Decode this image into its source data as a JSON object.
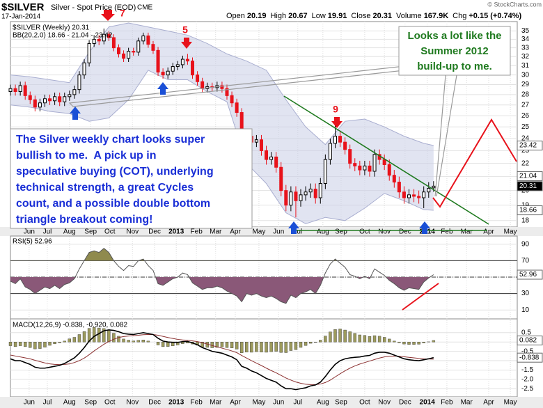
{
  "credit": "© StockCharts.com",
  "chart_data": [
    {
      "type": "candlestick",
      "title": "$SILVER",
      "subtitle": "Silver - Spot Price (EOD)",
      "exchange": "CME",
      "date": "17-Jan-2014",
      "stats": [
        {
          "label": "Open",
          "value": "20.19"
        },
        {
          "label": "High",
          "value": "20.67"
        },
        {
          "label": "Low",
          "value": "19.91"
        },
        {
          "label": "Close",
          "value": "20.31"
        },
        {
          "label": "Volume",
          "value": "167.9K"
        },
        {
          "label": "Chg",
          "value": "+0.15 (+0.74%)"
        }
      ],
      "legend": [
        "$SILVER (Weekly) 20.31",
        "BB(20,2.0) 18.66 - 21.04 - 23.42"
      ],
      "log_scale": true,
      "grid": true,
      "up_color": "#000000",
      "down_color": "#e8121b",
      "xlim": [
        0,
        103
      ],
      "xticks": [
        {
          "value": 3.8,
          "label": "Jun"
        },
        {
          "value": 7.5,
          "label": "Jul"
        },
        {
          "value": 12.0,
          "label": "Aug"
        },
        {
          "value": 16.3,
          "label": "Sep"
        },
        {
          "value": 20.2,
          "label": "Oct"
        },
        {
          "value": 24.8,
          "label": "Nov"
        },
        {
          "value": 29.3,
          "label": "Dec"
        },
        {
          "value": 33.7,
          "label": "2013"
        },
        {
          "value": 37.8,
          "label": "Feb"
        },
        {
          "value": 41.7,
          "label": "Mar"
        },
        {
          "value": 45.7,
          "label": "Apr"
        },
        {
          "value": 50.5,
          "label": "May"
        },
        {
          "value": 54.5,
          "label": "Jun"
        },
        {
          "value": 58.4,
          "label": "Jul"
        },
        {
          "value": 63.5,
          "label": "Aug"
        },
        {
          "value": 67.2,
          "label": "Sep"
        },
        {
          "value": 72.0,
          "label": "Oct"
        },
        {
          "value": 76.0,
          "label": "Nov"
        },
        {
          "value": 80.2,
          "label": "Dec"
        },
        {
          "value": 84.7,
          "label": "2014"
        },
        {
          "value": 88.7,
          "label": "Feb"
        },
        {
          "value": 92.7,
          "label": "Mar"
        },
        {
          "value": 97.2,
          "label": "Apr"
        },
        {
          "value": 101.6,
          "label": "May"
        }
      ],
      "ylim": [
        17.6,
        36
      ],
      "yticks": [
        18,
        19,
        20,
        21,
        22,
        23,
        24,
        25,
        26,
        27,
        28,
        29,
        30,
        31,
        32,
        33,
        34,
        35
      ],
      "x": [
        0,
        1,
        2,
        3,
        4,
        5,
        6,
        7,
        8,
        9,
        10,
        11,
        12,
        13,
        14,
        15,
        16,
        17,
        18,
        19,
        20,
        21,
        22,
        23,
        24,
        25,
        26,
        27,
        28,
        29,
        30,
        31,
        32,
        33,
        34,
        35,
        36,
        37,
        38,
        39,
        40,
        41,
        42,
        43,
        44,
        45,
        46,
        47,
        48,
        49,
        50,
        51,
        52,
        53,
        54,
        55,
        56,
        57,
        58,
        59,
        60,
        61,
        62,
        63,
        64,
        65,
        66,
        67,
        68,
        69,
        70,
        71,
        72,
        73,
        74,
        75,
        76,
        77,
        78,
        79,
        80,
        81,
        82,
        83,
        84,
        85,
        86
      ],
      "open": [
        28.3,
        28.6,
        28.3,
        28.9,
        27.9,
        27.5,
        26.8,
        27.2,
        27.6,
        27.4,
        27.8,
        27.3,
        27.8,
        28.0,
        28.5,
        30.0,
        31.3,
        33.5,
        34.0,
        33.8,
        34.6,
        34.2,
        33.0,
        32.3,
        31.8,
        32.6,
        32.5,
        33.8,
        34.4,
        33.4,
        32.7,
        30.3,
        30.0,
        30.4,
        30.9,
        31.1,
        31.7,
        31.5,
        30.0,
        29.3,
        28.6,
        28.8,
        28.7,
        28.9,
        28.6,
        27.9,
        27.2,
        26.3,
        23.0,
        24.2,
        23.7,
        23.9,
        23.0,
        22.3,
        22.5,
        21.7,
        20.0,
        19.0,
        19.9,
        19.3,
        19.7,
        19.9,
        20.1,
        19.5,
        20.5,
        22.3,
        23.6,
        24.2,
        23.7,
        23.1,
        22.0,
        21.8,
        21.5,
        21.8,
        21.4,
        22.7,
        22.3,
        21.9,
        21.1,
        20.6,
        19.9,
        19.5,
        19.7,
        19.6,
        19.5,
        19.9,
        20.19
      ],
      "high": [
        29.0,
        29.0,
        29.3,
        29.3,
        28.3,
        27.9,
        27.6,
        28.0,
        28.0,
        28.2,
        28.2,
        28.2,
        28.4,
        28.9,
        30.4,
        31.7,
        33.9,
        34.5,
        34.5,
        35.3,
        35.0,
        34.6,
        33.4,
        32.7,
        33.0,
        33.0,
        34.2,
        34.8,
        34.8,
        33.8,
        33.1,
        30.7,
        30.8,
        31.3,
        31.5,
        32.1,
        32.3,
        31.9,
        30.4,
        29.7,
        29.2,
        29.2,
        29.3,
        29.3,
        29.0,
        28.3,
        27.6,
        26.7,
        24.6,
        24.6,
        24.3,
        24.3,
        23.4,
        22.9,
        22.9,
        22.1,
        20.4,
        20.3,
        20.3,
        20.1,
        20.3,
        20.5,
        20.5,
        20.9,
        22.7,
        24.0,
        25.2,
        24.6,
        24.1,
        23.5,
        22.4,
        22.2,
        22.2,
        22.2,
        23.1,
        23.1,
        22.7,
        22.3,
        21.5,
        21.0,
        20.3,
        20.1,
        20.1,
        20.0,
        20.3,
        20.6,
        20.67
      ],
      "low": [
        27.9,
        27.9,
        27.9,
        27.5,
        27.1,
        26.4,
        26.4,
        26.8,
        27.0,
        27.0,
        26.9,
        26.9,
        27.4,
        27.6,
        28.1,
        29.6,
        30.9,
        33.1,
        33.3,
        33.4,
        33.8,
        32.6,
        31.9,
        31.4,
        31.4,
        32.1,
        32.1,
        33.4,
        33.0,
        32.3,
        29.9,
        29.6,
        29.6,
        30.0,
        30.5,
        30.7,
        31.1,
        29.6,
        28.9,
        28.2,
        28.2,
        28.3,
        28.3,
        28.2,
        27.5,
        26.8,
        25.9,
        22.2,
        22.6,
        23.3,
        23.3,
        22.6,
        21.9,
        21.9,
        21.3,
        19.6,
        18.6,
        18.6,
        18.2,
        18.9,
        19.3,
        19.5,
        19.1,
        19.1,
        20.1,
        21.9,
        23.2,
        23.3,
        22.7,
        21.6,
        21.4,
        21.1,
        21.1,
        21.0,
        21.0,
        21.9,
        21.5,
        20.7,
        20.2,
        19.5,
        19.1,
        19.1,
        19.2,
        19.1,
        18.8,
        19.5,
        19.91
      ],
      "close": [
        28.6,
        28.3,
        28.9,
        27.9,
        27.5,
        26.8,
        27.2,
        27.6,
        27.4,
        27.8,
        27.3,
        27.8,
        28.0,
        28.5,
        30.0,
        31.3,
        33.5,
        34.0,
        33.8,
        34.6,
        34.2,
        33.0,
        32.3,
        31.8,
        32.6,
        32.5,
        33.8,
        34.4,
        33.4,
        32.7,
        30.3,
        30.0,
        30.4,
        30.9,
        31.1,
        31.7,
        31.5,
        30.0,
        29.3,
        28.6,
        28.8,
        28.7,
        28.9,
        28.6,
        27.9,
        27.2,
        26.3,
        23.0,
        24.2,
        23.7,
        23.9,
        23.0,
        22.3,
        22.5,
        21.7,
        20.0,
        19.0,
        19.9,
        19.3,
        19.7,
        19.9,
        20.1,
        19.5,
        20.5,
        22.3,
        23.6,
        24.2,
        23.7,
        23.1,
        22.0,
        21.8,
        21.5,
        21.8,
        21.4,
        22.7,
        22.3,
        21.9,
        21.1,
        20.6,
        19.9,
        19.5,
        19.7,
        19.6,
        19.5,
        19.9,
        20.16,
        20.31
      ],
      "bands": {
        "color": "#c9cde6",
        "line_color": "#a9aed0",
        "x": [
          0,
          4,
          8,
          12,
          16,
          20,
          24,
          28,
          32,
          36,
          40,
          44,
          48,
          52,
          56,
          60,
          64,
          68,
          72,
          76,
          80,
          84,
          86
        ],
        "upper": [
          30.0,
          29.8,
          29.5,
          29.2,
          32.5,
          35.5,
          36.0,
          35.5,
          35.0,
          34.5,
          33.5,
          32.3,
          31.5,
          30.5,
          27.5,
          25.0,
          23.5,
          25.5,
          25.7,
          25.0,
          24.2,
          23.6,
          23.42
        ],
        "lower": [
          27.0,
          26.8,
          26.4,
          26.2,
          25.5,
          25.8,
          27.5,
          30.5,
          29.5,
          29.5,
          28.3,
          27.3,
          22.0,
          20.5,
          18.5,
          17.8,
          18.2,
          18.0,
          18.8,
          19.8,
          19.3,
          18.7,
          18.66
        ],
        "middle_last": 21.04
      },
      "flag_close_fill": "#000000",
      "flag_band_fill": "#ffffff",
      "annotations": [
        "7",
        "5",
        "9"
      ],
      "note_lines": [
        "The Silver weekly chart looks super",
        "bullish to me.  A pick up in",
        "speculative buying (COT), underlying",
        "technical strength, a great Cycles",
        "count, and a possible double bottom",
        "triangle breakout coming!"
      ],
      "callout_lines": [
        "Looks a lot like the",
        "Summer 2012",
        "build-up to me."
      ]
    },
    {
      "type": "line",
      "label": "RSI(5) 52.96",
      "color": "#555555",
      "high_fill": "#8f8a4e",
      "low_fill": "#8a5878",
      "ylim": [
        0,
        100
      ],
      "yticks": [
        10,
        30,
        50,
        70,
        90
      ],
      "levels": [
        30,
        70
      ],
      "midline": 50,
      "values": [
        45,
        42,
        48,
        38,
        35,
        30,
        34,
        38,
        36,
        40,
        36,
        41,
        43,
        48,
        60,
        70,
        80,
        82,
        80,
        85,
        80,
        70,
        63,
        58,
        64,
        63,
        70,
        72,
        64,
        58,
        42,
        40,
        44,
        48,
        50,
        55,
        53,
        43,
        39,
        35,
        37,
        37,
        39,
        37,
        33,
        30,
        27,
        20,
        30,
        28,
        30,
        27,
        25,
        27,
        24,
        20,
        18,
        28,
        25,
        30,
        32,
        35,
        30,
        40,
        55,
        66,
        72,
        67,
        62,
        53,
        51,
        48,
        51,
        48,
        60,
        56,
        52,
        46,
        42,
        37,
        34,
        37,
        36,
        35,
        44,
        49,
        52.96
      ]
    },
    {
      "type": "macd",
      "label": "MACD(12,26,9) -0.838, -0.920, 0.082",
      "macd_color": "#000000",
      "signal_color": "#8b3030",
      "hist_color": "#9c9a5c",
      "ylim": [
        -2.9,
        1.2
      ],
      "yticks": [
        0.5,
        0,
        -0.5,
        {
          "value": -1,
          "label": "-1.0"
        },
        -1.5,
        {
          "value": -2,
          "label": "-2.0"
        },
        -2.5
      ],
      "macd": [
        -0.9,
        -1.0,
        -1.0,
        -1.1,
        -1.2,
        -1.35,
        -1.4,
        -1.4,
        -1.35,
        -1.3,
        -1.25,
        -1.15,
        -1.0,
        -0.85,
        -0.6,
        -0.3,
        0.05,
        0.3,
        0.45,
        0.6,
        0.65,
        0.62,
        0.55,
        0.45,
        0.42,
        0.4,
        0.45,
        0.5,
        0.45,
        0.4,
        0.2,
        0.05,
        0.0,
        -0.02,
        -0.02,
        0.02,
        0.03,
        -0.05,
        -0.15,
        -0.3,
        -0.4,
        -0.5,
        -0.55,
        -0.6,
        -0.7,
        -0.8,
        -0.95,
        -1.3,
        -1.4,
        -1.55,
        -1.65,
        -1.8,
        -1.95,
        -2.05,
        -2.15,
        -2.35,
        -2.5,
        -2.5,
        -2.55,
        -2.5,
        -2.45,
        -2.35,
        -2.3,
        -2.15,
        -1.85,
        -1.5,
        -1.2,
        -1.0,
        -0.9,
        -0.85,
        -0.82,
        -0.8,
        -0.75,
        -0.72,
        -0.6,
        -0.55,
        -0.55,
        -0.6,
        -0.7,
        -0.8,
        -0.9,
        -0.95,
        -0.98,
        -1.0,
        -0.95,
        -0.9,
        -0.838
      ],
      "signal": [
        -0.7,
        -0.75,
        -0.8,
        -0.85,
        -0.9,
        -0.98,
        -1.05,
        -1.12,
        -1.17,
        -1.2,
        -1.21,
        -1.2,
        -1.17,
        -1.1,
        -1.0,
        -0.86,
        -0.68,
        -0.48,
        -0.3,
        -0.12,
        0.03,
        0.15,
        0.24,
        0.29,
        0.32,
        0.34,
        0.36,
        0.39,
        0.4,
        0.4,
        0.36,
        0.3,
        0.24,
        0.19,
        0.14,
        0.11,
        0.09,
        0.06,
        0.02,
        -0.04,
        -0.11,
        -0.19,
        -0.26,
        -0.33,
        -0.4,
        -0.48,
        -0.57,
        -0.72,
        -0.86,
        -1.0,
        -1.13,
        -1.26,
        -1.4,
        -1.53,
        -1.65,
        -1.79,
        -1.93,
        -2.04,
        -2.14,
        -2.21,
        -2.26,
        -2.28,
        -2.28,
        -2.25,
        -2.17,
        -2.04,
        -1.87,
        -1.7,
        -1.54,
        -1.4,
        -1.28,
        -1.18,
        -1.1,
        -1.02,
        -0.94,
        -0.86,
        -0.8,
        -0.76,
        -0.75,
        -0.76,
        -0.79,
        -0.82,
        -0.85,
        -0.88,
        -0.9,
        -0.91,
        -0.92
      ],
      "histogram": [
        -0.2,
        -0.25,
        -0.2,
        -0.25,
        -0.3,
        -0.37,
        -0.35,
        -0.28,
        -0.18,
        -0.1,
        -0.04,
        0.05,
        0.17,
        0.25,
        0.4,
        0.56,
        0.73,
        0.78,
        0.75,
        0.72,
        0.62,
        0.47,
        0.31,
        0.16,
        0.1,
        0.06,
        0.09,
        0.11,
        0.05,
        0.0,
        -0.16,
        -0.25,
        -0.24,
        -0.21,
        -0.16,
        -0.09,
        -0.06,
        -0.11,
        -0.17,
        -0.26,
        -0.29,
        -0.31,
        -0.29,
        -0.27,
        -0.3,
        -0.32,
        -0.38,
        -0.58,
        -0.54,
        -0.55,
        -0.52,
        -0.54,
        -0.55,
        -0.52,
        -0.5,
        -0.56,
        -0.57,
        -0.46,
        -0.41,
        -0.29,
        -0.19,
        -0.07,
        -0.02,
        0.1,
        0.32,
        0.54,
        0.67,
        0.7,
        0.64,
        0.55,
        0.46,
        0.38,
        0.35,
        0.3,
        0.34,
        0.31,
        0.25,
        0.16,
        0.05,
        -0.04,
        -0.11,
        -0.13,
        -0.13,
        -0.12,
        -0.05,
        0.01,
        0.082
      ]
    }
  ]
}
